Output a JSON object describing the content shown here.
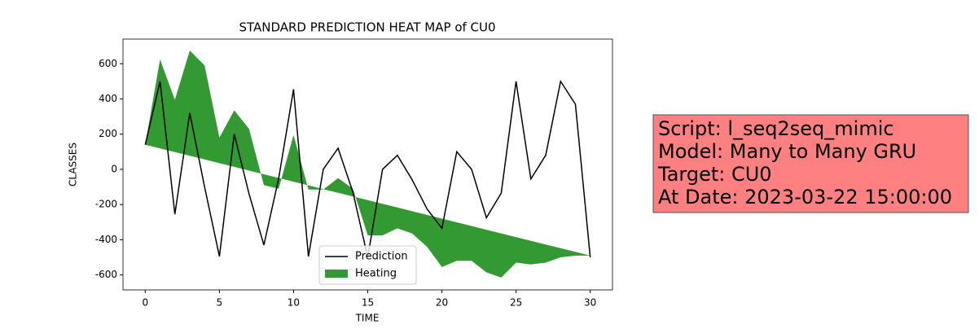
{
  "chart_data": {
    "type": "line-area",
    "title": "STANDARD PREDICTION HEAT MAP of CU0",
    "xlabel": "TIME",
    "ylabel": "CLASSES",
    "x": [
      0,
      1,
      2,
      3,
      4,
      5,
      6,
      7,
      8,
      9,
      10,
      11,
      12,
      13,
      14,
      15,
      16,
      17,
      18,
      19,
      20,
      21,
      22,
      23,
      24,
      25,
      26,
      27,
      28,
      29,
      30
    ],
    "series": [
      {
        "name": "Prediction",
        "color": "#000000",
        "kind": "line",
        "values": [
          140,
          500,
          -255,
          320,
          -100,
          -495,
          200,
          -140,
          -430,
          -50,
          455,
          -495,
          0,
          120,
          -130,
          -500,
          0,
          80,
          -60,
          -225,
          -335,
          100,
          0,
          -275,
          -135,
          500,
          -55,
          80,
          500,
          370,
          -500
        ]
      },
      {
        "name": "Heating",
        "color": "#339933",
        "kind": "area",
        "values": [
          140,
          625,
          395,
          675,
          590,
          180,
          335,
          230,
          -90,
          -110,
          195,
          -115,
          -115,
          -50,
          -110,
          -375,
          -375,
          -335,
          -365,
          -440,
          -555,
          -520,
          -520,
          -585,
          -615,
          -530,
          -540,
          -530,
          -500,
          -490,
          -490
        ],
        "base": [
          140,
          119,
          98,
          77,
          56,
          35,
          14,
          -7,
          -28,
          -49,
          -70,
          -91,
          -112,
          -133,
          -154,
          -175,
          -196,
          -217,
          -238,
          -259,
          -280,
          -301,
          -322,
          -343,
          -364,
          -385,
          -406,
          -427,
          -448,
          -469,
          -490
        ]
      }
    ],
    "xlim": [
      -1.5,
      31.5
    ],
    "xticks": [
      0,
      5,
      10,
      15,
      20,
      25,
      30
    ],
    "ylim": [
      -685,
      740
    ],
    "yticks": [
      -600,
      -400,
      -200,
      0,
      200,
      400,
      600
    ],
    "legend": "lower center",
    "annotation": [
      "Script: l_seq2seq_mimic",
      "Model: Many to Many GRU",
      "Target: CU0",
      "At Date: 2023-03-22 15:00:00"
    ],
    "annotation_color": "#ff8080"
  }
}
